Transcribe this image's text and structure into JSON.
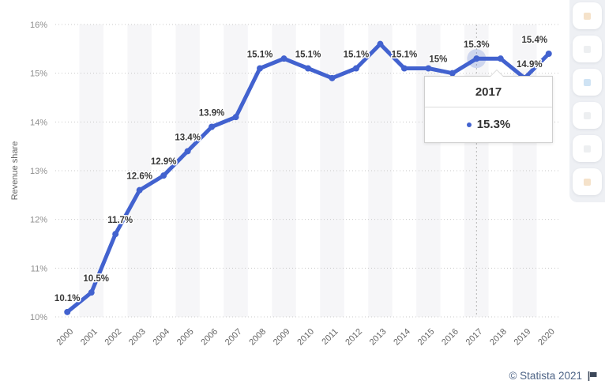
{
  "chart_data": {
    "type": "line",
    "title": "",
    "xlabel": "",
    "ylabel": "Revenue share",
    "ylim": [
      10,
      16
    ],
    "ytick_labels": [
      "10%",
      "11%",
      "12%",
      "13%",
      "14%",
      "15%",
      "16%"
    ],
    "categories": [
      "2000",
      "2001",
      "2002",
      "2003",
      "2004",
      "2005",
      "2006",
      "2007",
      "2008",
      "2009",
      "2010",
      "2011",
      "2012",
      "2013",
      "2014",
      "2015",
      "2016",
      "2017",
      "2018",
      "2019",
      "2020"
    ],
    "series": [
      {
        "name": "Revenue share",
        "values": [
          10.1,
          10.5,
          11.7,
          12.6,
          12.9,
          13.4,
          13.9,
          14.1,
          15.1,
          15.3,
          15.1,
          14.9,
          15.1,
          15.6,
          15.1,
          15.1,
          15.0,
          15.3,
          15.3,
          14.9,
          15.4
        ]
      }
    ],
    "point_labels": [
      "10.1%",
      "10.5%",
      "11.7%",
      "12.6%",
      "12.9%",
      "13.4%",
      "13.9%",
      null,
      "15.1%",
      null,
      "15.1%",
      null,
      "15.1%",
      null,
      "15.1%",
      null,
      "15%",
      "15.3%",
      null,
      "14.9%",
      "15.4%"
    ],
    "label_dx": {
      "1": 6,
      "2": 6,
      "16": -18,
      "19": 6,
      "20": -18
    },
    "hover_index": 17,
    "grid": "horizontal-dotted",
    "legend": "none",
    "plot_bands": "alternate-category-stripes",
    "colors": {
      "line": "#4262cf",
      "halo": "rgba(66,98,207,0.22)",
      "stripe": "#f6f6f8",
      "grid": "#c9c9c9",
      "crosshair": "#b5b5b5"
    }
  },
  "tooltip": {
    "title": "2017",
    "value": "15.3%",
    "bullet_icon": "series-bullet-icon",
    "bullet_color": "#4262cf"
  },
  "toolbar": {
    "buttons": [
      {
        "name": "toolbar-button-1",
        "icon": "faded-icon",
        "tint": "#e0a45a"
      },
      {
        "name": "toolbar-button-2",
        "icon": "faded-icon",
        "tint": "#c8ccd4"
      },
      {
        "name": "toolbar-button-3",
        "icon": "faded-icon",
        "tint": "#6aa7dd"
      },
      {
        "name": "toolbar-button-4",
        "icon": "faded-icon",
        "tint": "#c8ccd4"
      },
      {
        "name": "toolbar-button-5",
        "icon": "faded-icon",
        "tint": "#c8ccd4"
      },
      {
        "name": "toolbar-button-6",
        "icon": "faded-icon",
        "tint": "#e0a45a"
      }
    ]
  },
  "footer": {
    "copyright": "© Statista 2021",
    "flag_icon": "report-flag-icon",
    "text_color": "#4f6587",
    "flag_color": "#3c4759"
  }
}
